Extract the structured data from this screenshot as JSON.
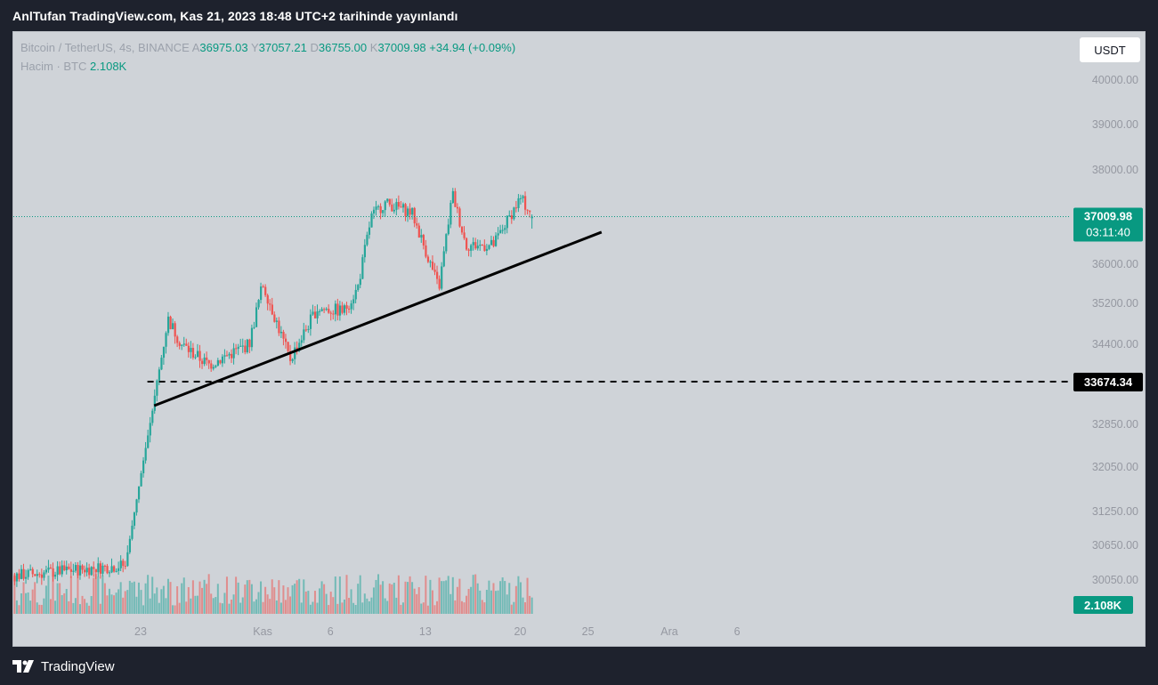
{
  "publication": "AnlTufan TradingView.com, Kas 21, 2023 18:48 UTC+2 tarihinde yayınlandı",
  "legend": {
    "symbol": "Bitcoin / TetherUS, 4s, BINANCE",
    "open_label": "A",
    "open": "36975.03",
    "high_label": "Y",
    "high": "37057.21",
    "low_label": "D",
    "low": "36755.00",
    "close_label": "K",
    "close": "37009.98",
    "change": "+34.94 (+0.09%)",
    "volume_label": "Hacim · BTC",
    "volume": "2.108K"
  },
  "currency_button": "USDT",
  "price_tag": {
    "price": "37009.98",
    "countdown": "03:11:40"
  },
  "level_tag": "33674.34",
  "volume_tag": "2.108K",
  "footer_brand": "TradingView",
  "colors": {
    "up": "#26a69a",
    "down": "#ef5350",
    "background": "#cfd3d8",
    "accent": "#089981",
    "frame": "#1e222d"
  },
  "chart_data": {
    "type": "candlestick",
    "timeframe": "4h",
    "price_axis_ticks": [
      40000.0,
      39000.0,
      38000.0,
      36000.0,
      35200.0,
      34400.0,
      32850.0,
      32050.0,
      31250.0,
      30650.0,
      30050.0
    ],
    "time_axis_ticks": [
      "23",
      "Kas",
      "6",
      "13",
      "20",
      "25",
      "Ara",
      "6"
    ],
    "last_price": 37009.98,
    "horizontal_level": 33674.34,
    "trendline": {
      "from": {
        "date": "Oct 24",
        "price": 33210
      },
      "to": {
        "date": "Nov 26",
        "price": 36680
      }
    },
    "series": [
      {
        "name": "Bitcoin / TetherUS",
        "points": [
          {
            "date": "Oct 24",
            "price": 33300
          },
          {
            "date": "Oct 25",
            "price": 34900
          },
          {
            "date": "Oct 26",
            "price": 34400
          },
          {
            "date": "Oct 28",
            "price": 34000
          },
          {
            "date": "Oct 31",
            "price": 34400
          },
          {
            "date": "Nov 1",
            "price": 35600
          },
          {
            "date": "Nov 3",
            "price": 34100
          },
          {
            "date": "Nov 5",
            "price": 35100
          },
          {
            "date": "Nov 7",
            "price": 35050
          },
          {
            "date": "Nov 8",
            "price": 35500
          },
          {
            "date": "Nov 9",
            "price": 37000
          },
          {
            "date": "Nov 10",
            "price": 37300
          },
          {
            "date": "Nov 12",
            "price": 37100
          },
          {
            "date": "Nov 14",
            "price": 35500
          },
          {
            "date": "Nov 15",
            "price": 37500
          },
          {
            "date": "Nov 16",
            "price": 36400
          },
          {
            "date": "Nov 18",
            "price": 36400
          },
          {
            "date": "Nov 20",
            "price": 37400
          },
          {
            "date": "Nov 21",
            "price": 37009.98
          }
        ]
      }
    ]
  }
}
